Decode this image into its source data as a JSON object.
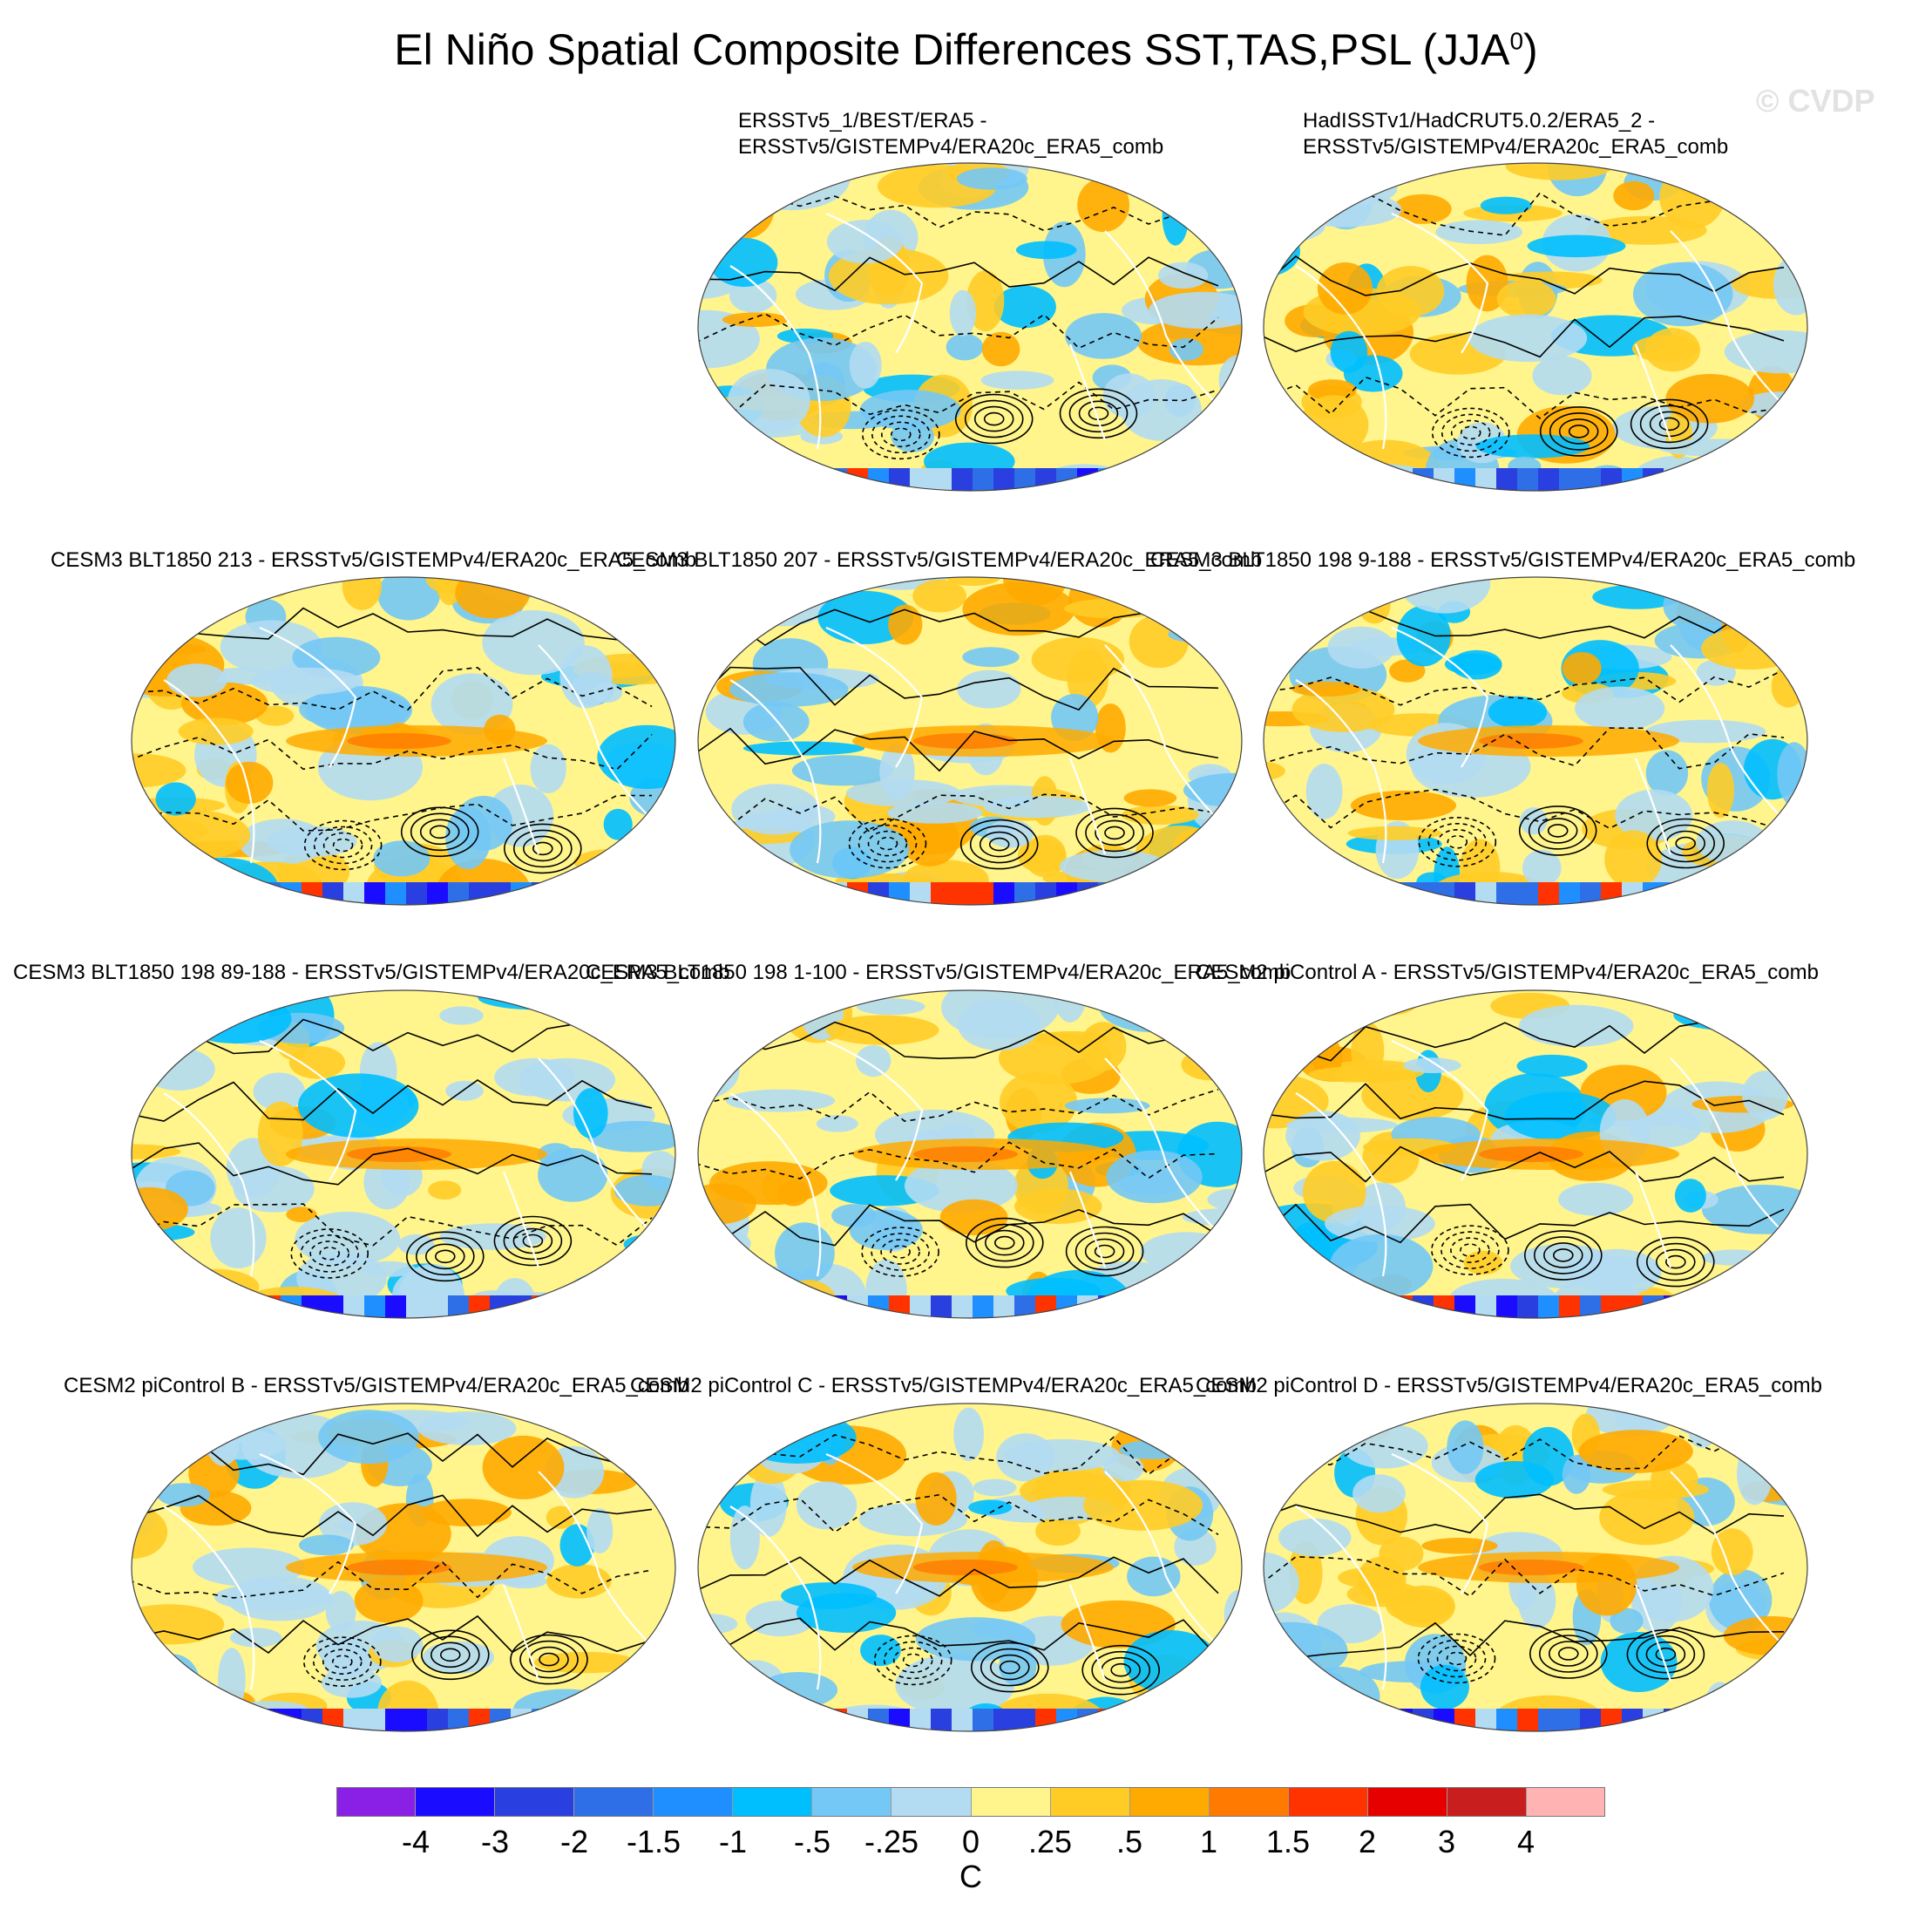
{
  "title": "El Niño Spatial Composite Differences SST,TAS,PSL (JJA",
  "title_sup": "0",
  "title_end": ")",
  "watermark": "© CVDP",
  "panels": [
    {
      "label": "ERSSTv5_1/BEST/ERA5 -\nERSSTv5/GISTEMPv4/ERA20c_ERA5_comb"
    },
    {
      "label": "HadISSTv1/HadCRUT5.0.2/ERA5_2 -\nERSSTv5/GISTEMPv4/ERA20c_ERA5_comb"
    },
    {
      "label": "CESM3 BLT1850 213 - ERSSTv5/GISTEMPv4/ERA20c_ERA5_comb"
    },
    {
      "label": "CESM3 BLT1850 207 - ERSSTv5/GISTEMPv4/ERA20c_ERA5_comb"
    },
    {
      "label": "CESM3 BLT1850 198 9-188 - ERSSTv5/GISTEMPv4/ERA20c_ERA5_comb"
    },
    {
      "label": "CESM3 BLT1850 198 89-188 - ERSSTv5/GISTEMPv4/ERA20c_ERA5_comb"
    },
    {
      "label": "CESM3 BLT1850 198 1-100 - ERSSTv5/GISTEMPv4/ERA20c_ERA5_comb"
    },
    {
      "label": "CESM2 piControl A - ERSSTv5/GISTEMPv4/ERA20c_ERA5_comb"
    },
    {
      "label": "CESM2 piControl B - ERSSTv5/GISTEMPv4/ERA20c_ERA5_comb"
    },
    {
      "label": "CESM2 piControl C - ERSSTv5/GISTEMPv4/ERA20c_ERA5_comb"
    },
    {
      "label": "CESM2 piControl D - ERSSTv5/GISTEMPv4/ERA20c_ERA5_comb"
    }
  ],
  "colorbar": {
    "colors": [
      "#8a1fe6",
      "#1a0dff",
      "#2a3fe0",
      "#2e6fe8",
      "#1f8fff",
      "#00bfff",
      "#74c8f5",
      "#b3dcf2",
      "#fff58c",
      "#ffcc26",
      "#ffaa00",
      "#ff7a00",
      "#ff3300",
      "#e60000",
      "#c81e1e",
      "#ffb3b3"
    ],
    "ticks": [
      "-4",
      "-3",
      "-2",
      "-1.5",
      "-1",
      "-.5",
      "-.25",
      "0",
      ".25",
      ".5",
      "1",
      "1.5",
      "2",
      "3",
      "4"
    ],
    "unit": "C"
  }
}
